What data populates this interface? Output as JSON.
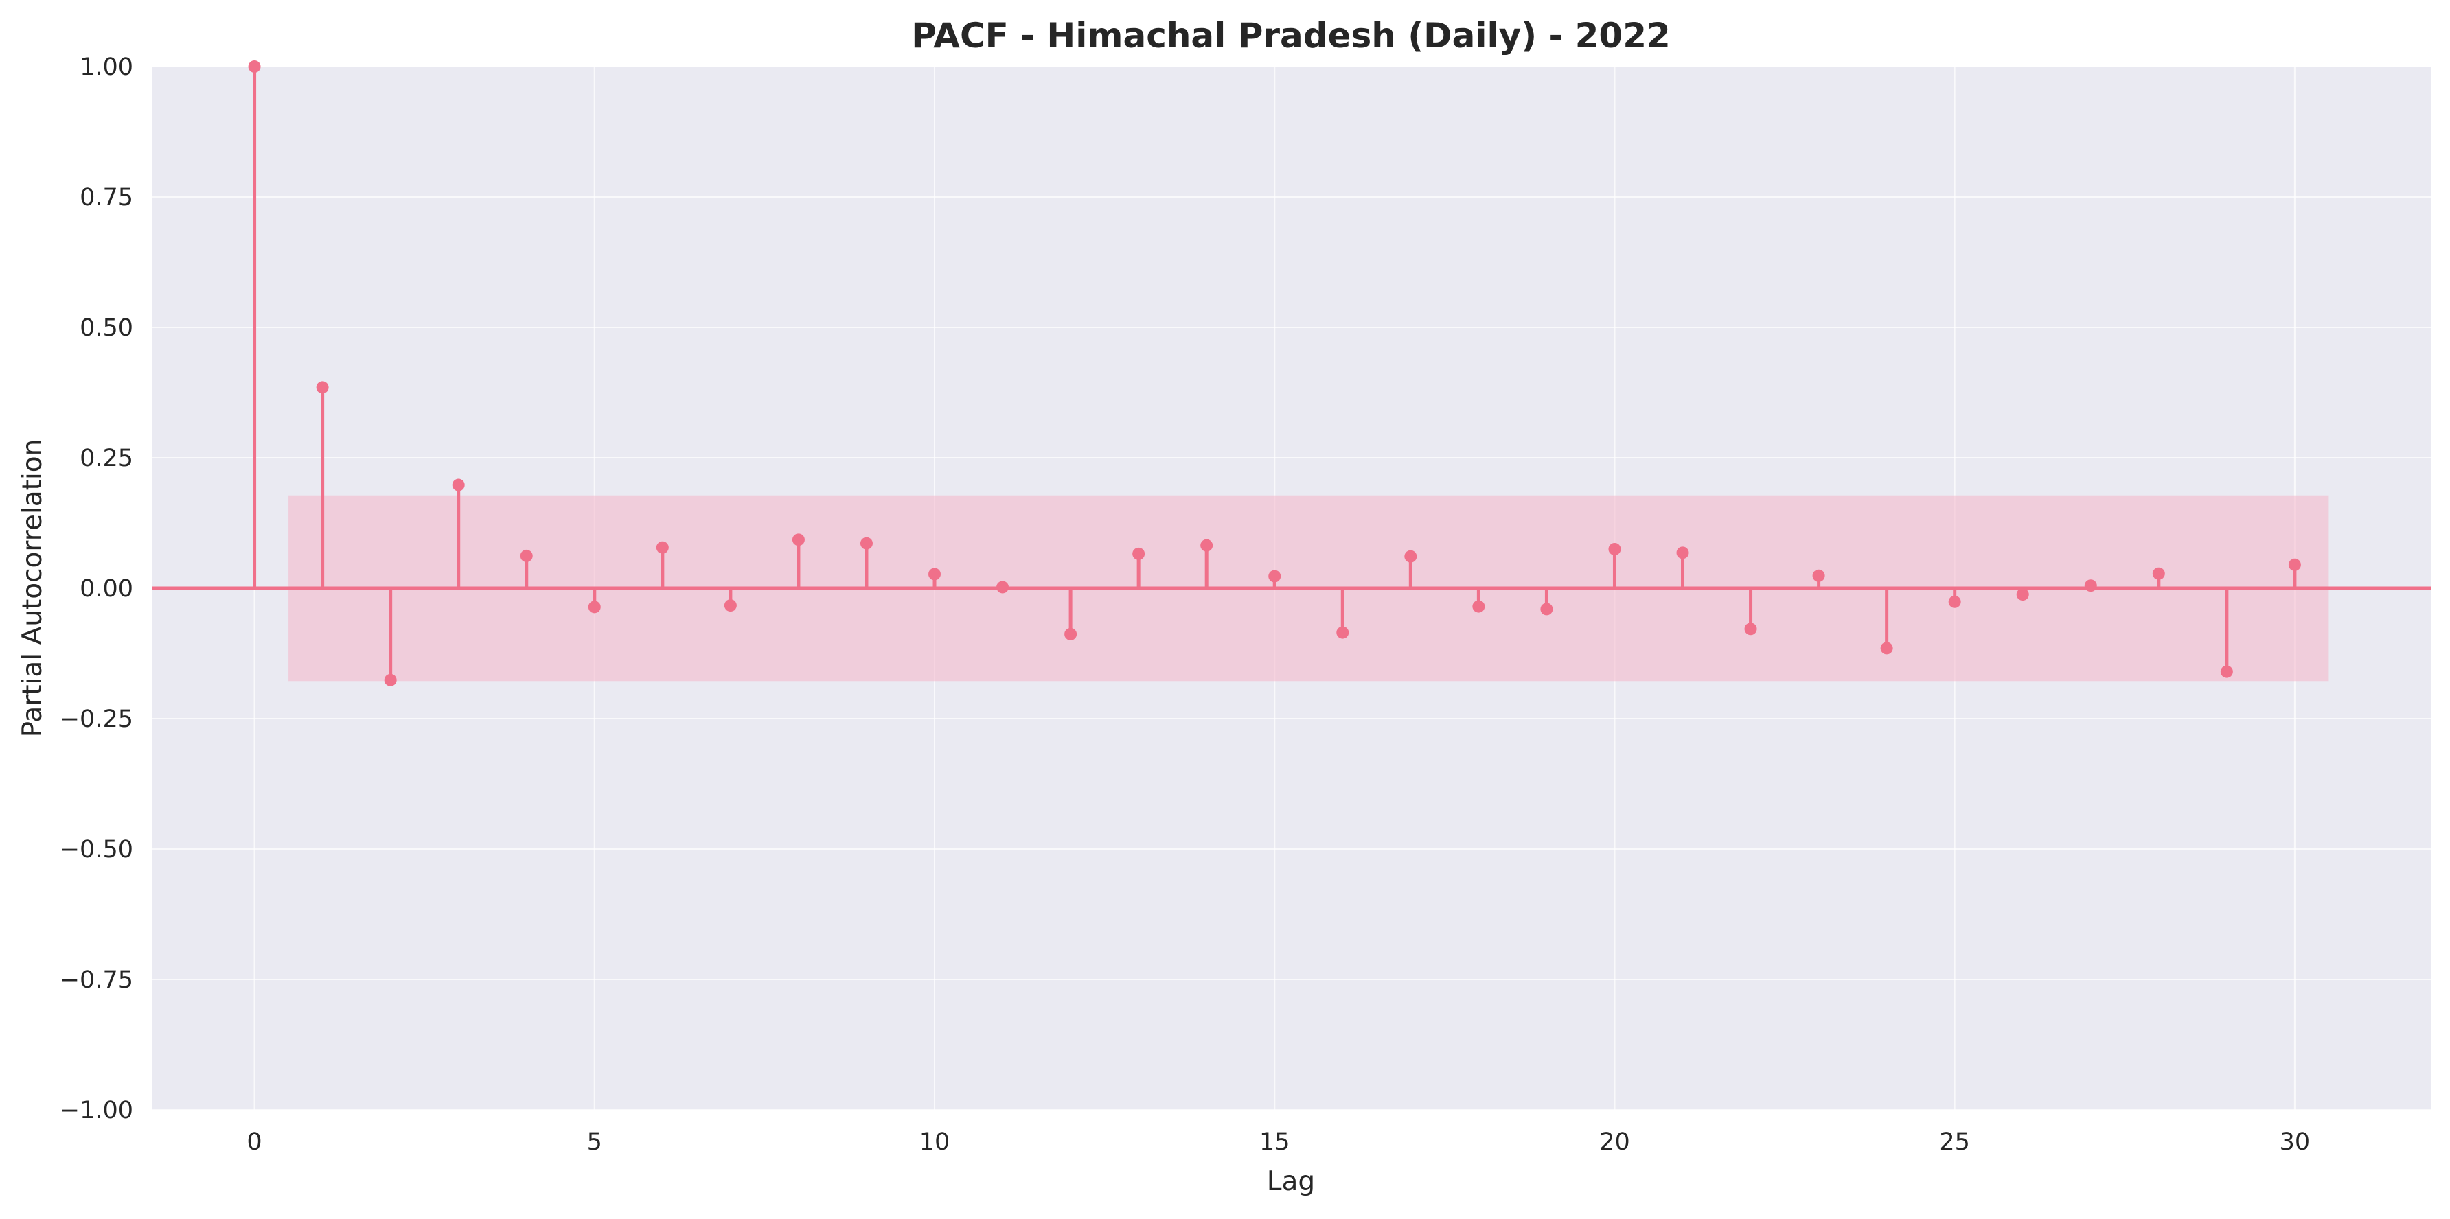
{
  "chart_data": {
    "type": "stem",
    "title": "PACF - Himachal Pradesh (Daily) - 2022",
    "xlabel": "Lag",
    "ylabel": "Partial Autocorrelation",
    "xlim": [
      -1.5,
      32
    ],
    "ylim": [
      -1.0,
      1.0
    ],
    "x_ticks": [
      0,
      5,
      10,
      15,
      20,
      25,
      30
    ],
    "y_ticks": [
      1.0,
      0.75,
      0.5,
      0.25,
      0.0,
      -0.25,
      -0.5,
      -0.75,
      -1.0
    ],
    "x_tick_labels": [
      "0",
      "5",
      "10",
      "15",
      "20",
      "25",
      "30"
    ],
    "y_tick_labels": [
      "1.00",
      "0.75",
      "0.50",
      "0.25",
      "0.00",
      "−0.25",
      "−0.50",
      "−0.75",
      "−1.00"
    ],
    "grid": true,
    "lags": [
      0,
      1,
      2,
      3,
      4,
      5,
      6,
      7,
      8,
      9,
      10,
      11,
      12,
      13,
      14,
      15,
      16,
      17,
      18,
      19,
      20,
      21,
      22,
      23,
      24,
      25,
      26,
      27,
      28,
      29,
      30
    ],
    "values": [
      1.0,
      0.385,
      -0.176,
      0.198,
      0.062,
      -0.036,
      0.078,
      -0.033,
      0.093,
      0.086,
      0.027,
      0.002,
      -0.088,
      0.066,
      0.082,
      0.023,
      -0.085,
      0.061,
      -0.035,
      -0.04,
      0.075,
      0.068,
      -0.078,
      0.024,
      -0.115,
      -0.026,
      -0.012,
      0.005,
      0.028,
      -0.16,
      0.045
    ],
    "confidence_band": {
      "x_range": [
        0.5,
        30.5
      ],
      "upper": 0.178,
      "lower": -0.178
    },
    "colors": {
      "stem": "#f0708a",
      "marker": "#f0708a",
      "zero_line": "#f0708a",
      "band": "#f4b5c8",
      "plot_background": "#eaeaf2",
      "grid": "#ffffff"
    }
  }
}
